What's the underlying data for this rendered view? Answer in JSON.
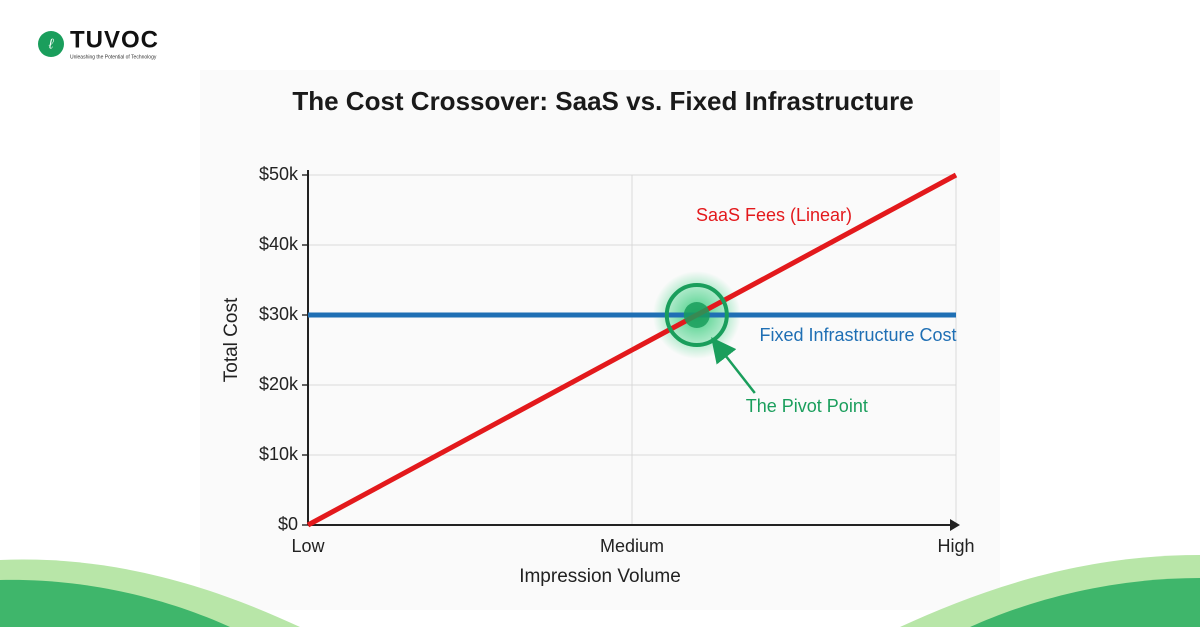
{
  "brand": {
    "name": "TUVOC",
    "tagline": "Unleashing the Potential of Technology"
  },
  "chart_data": {
    "type": "line",
    "title": "The Cost Crossover: SaaS vs. Fixed Infrastructure",
    "x_label": "Impression Volume",
    "y_label": "Total Cost",
    "xlim": [
      0,
      2
    ],
    "xticks": [
      {
        "value": 0,
        "label": "Low"
      },
      {
        "value": 1,
        "label": "Medium"
      },
      {
        "value": 2,
        "label": "High"
      }
    ],
    "ylim": [
      0,
      50000
    ],
    "yticks": [
      {
        "value": 0,
        "label": "$0"
      },
      {
        "value": 10000,
        "label": "$10k"
      },
      {
        "value": 20000,
        "label": "$20k"
      },
      {
        "value": 30000,
        "label": "$30k"
      },
      {
        "value": 40000,
        "label": "$40k"
      },
      {
        "value": 50000,
        "label": "$50k"
      }
    ],
    "grid": true,
    "series": [
      {
        "name": "SaaS Fees (Linear)",
        "color": "#e3191c",
        "x": [
          0,
          2
        ],
        "values": [
          0,
          50000
        ]
      },
      {
        "name": "Fixed Infrastructure Cost",
        "color": "#1f6fb4",
        "x": [
          0,
          2
        ],
        "values": [
          30000,
          30000
        ]
      }
    ],
    "annotations": [
      {
        "text": "The Pivot Point",
        "x": 1.2,
        "y": 30000,
        "color": "#1a9e5c"
      }
    ]
  }
}
